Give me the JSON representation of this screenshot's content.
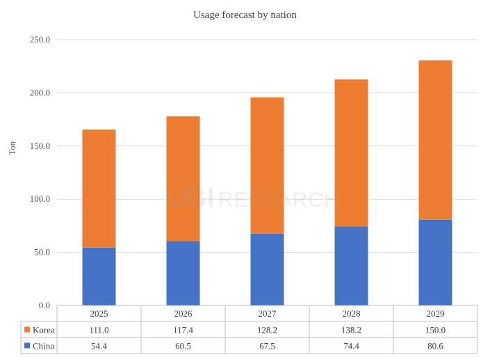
{
  "chart_data": {
    "type": "bar",
    "stacked": true,
    "title": "Usage forecast by nation",
    "xlabel": "",
    "ylabel": "Ton",
    "ylim": [
      0,
      250
    ],
    "yticks": [
      "0.0",
      "50.0",
      "100.0",
      "150.0",
      "200.0",
      "250.0"
    ],
    "categories": [
      "2025",
      "2026",
      "2027",
      "2028",
      "2029"
    ],
    "grid": true,
    "legend": "data-table",
    "series": [
      {
        "name": "China",
        "color": "#4472C4",
        "values": [
          54.4,
          60.5,
          67.5,
          74.4,
          80.6
        ],
        "labels": [
          "54.4",
          "60.5",
          "67.5",
          "74.4",
          "80.6"
        ]
      },
      {
        "name": "Korea",
        "color": "#ED7D31",
        "values": [
          111.0,
          117.4,
          128.2,
          138.2,
          150.0
        ],
        "labels": [
          "111.0",
          "117.4",
          "128.2",
          "138.2",
          "150.0"
        ]
      }
    ]
  },
  "watermark": {
    "main": "UBI",
    "sub": "RESEARCH"
  }
}
